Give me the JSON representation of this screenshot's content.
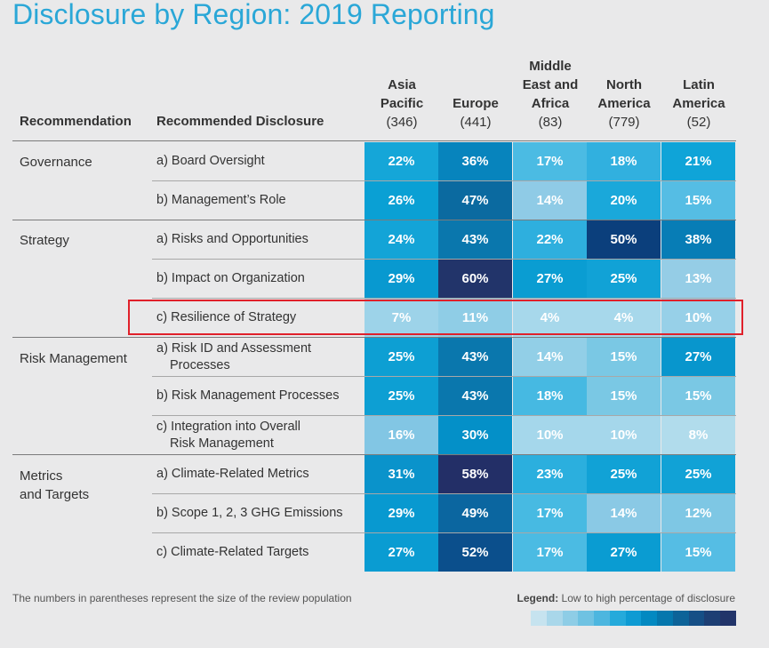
{
  "title": "Disclosure by Region: 2019 Reporting",
  "headers": {
    "recommendation": "Recommendation",
    "disclosure": "Recommended Disclosure"
  },
  "footnote": "The numbers in parentheses represent the size of the review population",
  "legend": {
    "label": "Legend:",
    "text": " Low to high percentage of disclosure",
    "colors": [
      "#c6e3ef",
      "#a9d7ea",
      "#8ecde6",
      "#6fc2e2",
      "#4db6df",
      "#25aadb",
      "#0e9bd3",
      "#0389c1",
      "#0577ad",
      "#0d6398",
      "#164f86",
      "#1d3f74",
      "#22346a"
    ]
  },
  "chart_data": {
    "type": "heatmap",
    "title": "Disclosure by Region: 2019 Reporting",
    "columns": [
      {
        "name_lines": [
          "Asia",
          "Pacific"
        ],
        "count": "(346)"
      },
      {
        "name_lines": [
          "Europe"
        ],
        "count": "(441)"
      },
      {
        "name_lines": [
          "Middle",
          "East and",
          "Africa"
        ],
        "count": "(83)"
      },
      {
        "name_lines": [
          "North",
          "America"
        ],
        "count": "(779)"
      },
      {
        "name_lines": [
          "Latin",
          "America"
        ],
        "count": "(52)"
      }
    ],
    "groups": [
      {
        "label_lines": [
          "Governance"
        ],
        "rows": [
          0,
          1
        ]
      },
      {
        "label_lines": [
          "Strategy"
        ],
        "rows": [
          2,
          3,
          4
        ]
      },
      {
        "label_lines": [
          "Risk Management"
        ],
        "rows": [
          5,
          6,
          7
        ]
      },
      {
        "label_lines": [
          "Metrics",
          "and Targets"
        ],
        "rows": [
          8,
          9,
          10
        ]
      }
    ],
    "rows": [
      {
        "lines": [
          "a) Board Oversight"
        ],
        "values": [
          22,
          36,
          17,
          18,
          21
        ]
      },
      {
        "lines": [
          "b) Management’s Role"
        ],
        "values": [
          26,
          47,
          14,
          20,
          15
        ]
      },
      {
        "lines": [
          "a) Risks and Opportunities"
        ],
        "values": [
          24,
          43,
          22,
          50,
          38
        ]
      },
      {
        "lines": [
          "b) Impact on Organization"
        ],
        "values": [
          29,
          60,
          27,
          25,
          13
        ]
      },
      {
        "lines": [
          "c) Resilience of Strategy"
        ],
        "values": [
          7,
          11,
          4,
          4,
          10
        ]
      },
      {
        "lines": [
          "a) Risk ID and Assessment",
          "Processes"
        ],
        "values": [
          25,
          43,
          14,
          15,
          27
        ]
      },
      {
        "lines": [
          "b) Risk Management Processes"
        ],
        "values": [
          25,
          43,
          18,
          15,
          15
        ]
      },
      {
        "lines": [
          "c) Integration into Overall",
          "Risk Management"
        ],
        "values": [
          16,
          30,
          10,
          10,
          8
        ]
      },
      {
        "lines": [
          "a) Climate-Related Metrics"
        ],
        "values": [
          31,
          58,
          23,
          25,
          25
        ]
      },
      {
        "lines": [
          "b) Scope 1, 2, 3 GHG Emissions"
        ],
        "values": [
          29,
          49,
          17,
          14,
          12
        ]
      },
      {
        "lines": [
          "c) Climate-Related Targets"
        ],
        "values": [
          27,
          52,
          17,
          27,
          15
        ]
      }
    ],
    "highlighted_row": 4,
    "cell_colors": [
      [
        "#15a6d8",
        "#0784bd",
        "#4bbbe3",
        "#31b0df",
        "#0fa4d8"
      ],
      [
        "#0aa0d4",
        "#0b6aa0",
        "#8fcbe6",
        "#1aa8da",
        "#55bde4"
      ],
      [
        "#13a4d7",
        "#0a77ad",
        "#2eafde",
        "#0b3f7c",
        "#077db6"
      ],
      [
        "#0899d0",
        "#22346a",
        "#0a9dd2",
        "#11a2d6",
        "#95cde6"
      ],
      [
        "#9dd3e9",
        "#8fcde6",
        "#a7d8eb",
        "#a7d8eb",
        "#97d0e8"
      ],
      [
        "#0d9fd3",
        "#0a77ad",
        "#92cfe7",
        "#7ac8e4",
        "#0896cd"
      ],
      [
        "#0d9fd3",
        "#0a77ad",
        "#46b9e2",
        "#7ac8e4",
        "#7ac8e4"
      ],
      [
        "#82c6e4",
        "#0490c8",
        "#a5d7eb",
        "#a5d7eb",
        "#b1dcec"
      ],
      [
        "#0a93cb",
        "#232f67",
        "#2bafde",
        "#11a2d6",
        "#11a2d6"
      ],
      [
        "#0899d0",
        "#0b66a0",
        "#47bae2",
        "#8ac9e5",
        "#7ec7e4"
      ],
      [
        "#0a9cd2",
        "#0b4f8c",
        "#4bbbe3",
        "#0a9cd2",
        "#55bde4"
      ]
    ]
  }
}
